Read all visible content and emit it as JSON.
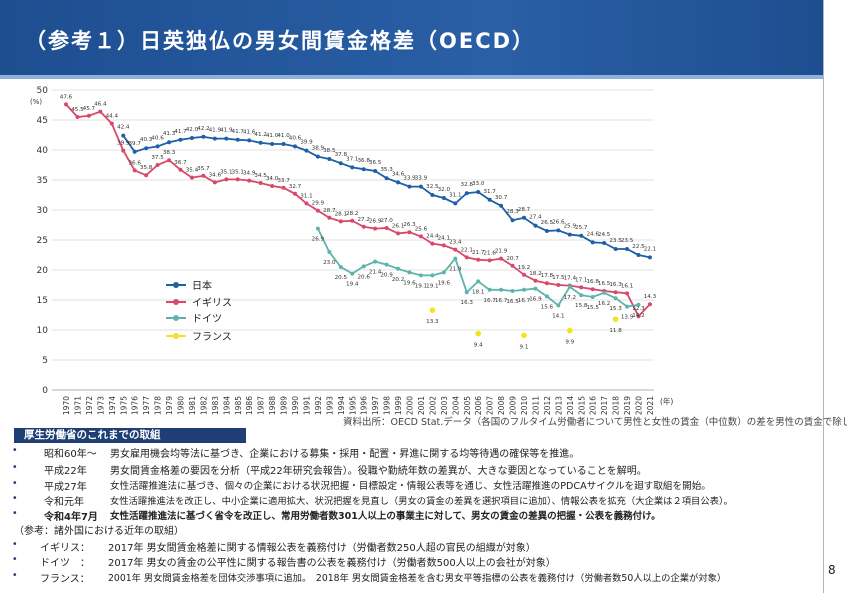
{
  "header": {
    "title": "（参考１）日英独仏の男女間賃金格差（OECD）"
  },
  "chart_data": {
    "type": "line",
    "ylabel": "(%)",
    "xunit": "(年)",
    "ylim": [
      0,
      50
    ],
    "yticks": [
      "0",
      "5",
      "10",
      "15",
      "20",
      "25",
      "30",
      "35",
      "40",
      "45",
      "50"
    ],
    "x": [
      "1970",
      "1971",
      "1972",
      "1973",
      "1974",
      "1975",
      "1976",
      "1977",
      "1978",
      "1979",
      "1980",
      "1981",
      "1982",
      "1983",
      "1984",
      "1985",
      "1986",
      "1987",
      "1988",
      "1989",
      "1990",
      "1991",
      "1992",
      "1993",
      "1994",
      "1995",
      "1996",
      "1997",
      "1998",
      "1999",
      "2000",
      "2001",
      "2002",
      "2003",
      "2004",
      "2005",
      "2006",
      "2007",
      "2008",
      "2009",
      "2010",
      "2011",
      "2012",
      "2013",
      "2014",
      "2015",
      "2016",
      "2017",
      "2018",
      "2019",
      "2020",
      "2021"
    ],
    "legend": [
      "日本",
      "イギリス",
      "ドイツ",
      "フランス"
    ],
    "series": [
      {
        "name": "日本",
        "color": "#1f5fa6",
        "values": [
          null,
          null,
          null,
          null,
          null,
          42.4,
          39.7,
          40.3,
          40.6,
          41.3,
          41.7,
          42.0,
          42.2,
          41.9,
          41.9,
          41.7,
          41.6,
          41.2,
          41.0,
          41.0,
          40.6,
          39.9,
          38.9,
          38.5,
          37.8,
          37.1,
          36.8,
          36.5,
          35.3,
          34.6,
          33.9,
          33.9,
          32.5,
          32.0,
          31.1,
          32.8,
          33.0,
          31.7,
          30.7,
          28.3,
          28.7,
          27.4,
          26.5,
          26.6,
          25.9,
          25.7,
          24.6,
          24.5,
          23.5,
          23.5,
          22.5,
          22.1
        ]
      },
      {
        "name": "イギリス",
        "color": "#d9486a",
        "values": [
          47.6,
          45.5,
          45.7,
          46.4,
          44.4,
          39.9,
          36.6,
          35.8,
          37.5,
          38.3,
          36.7,
          35.4,
          35.7,
          34.6,
          35.1,
          35.1,
          34.9,
          34.5,
          34.0,
          33.7,
          32.7,
          31.1,
          29.9,
          28.7,
          28.1,
          28.2,
          27.2,
          26.9,
          27.0,
          26.1,
          26.3,
          25.6,
          24.4,
          24.1,
          23.4,
          22.1,
          21.7,
          21.6,
          21.9,
          20.7,
          19.2,
          18.2,
          17.8,
          17.5,
          17.4,
          17.1,
          16.8,
          16.5,
          16.3,
          16.1,
          12.3,
          14.3
        ]
      },
      {
        "name": "ドイツ",
        "color": "#5fb3ad",
        "values": [
          null,
          null,
          null,
          null,
          null,
          null,
          null,
          null,
          null,
          null,
          null,
          null,
          null,
          null,
          null,
          null,
          null,
          null,
          null,
          null,
          null,
          null,
          26.9,
          23.0,
          20.5,
          19.4,
          20.6,
          21.4,
          20.9,
          20.2,
          19.6,
          19.1,
          19.1,
          19.6,
          21.9,
          16.3,
          18.1,
          16.7,
          16.7,
          16.5,
          16.7,
          16.9,
          15.6,
          14.1,
          17.2,
          15.8,
          15.5,
          16.2,
          15.3,
          13.9,
          14.2,
          null
        ]
      },
      {
        "name": "フランス",
        "color": "#f2e31a",
        "values": [
          null,
          null,
          null,
          null,
          null,
          null,
          null,
          null,
          null,
          null,
          null,
          null,
          null,
          null,
          null,
          null,
          null,
          null,
          null,
          null,
          null,
          null,
          null,
          null,
          null,
          null,
          null,
          null,
          null,
          null,
          null,
          null,
          13.3,
          null,
          null,
          null,
          9.4,
          null,
          null,
          null,
          9.1,
          null,
          null,
          null,
          9.9,
          null,
          null,
          null,
          11.8,
          null,
          null,
          null
        ]
      }
    ]
  },
  "source": "資料出所：OECD Stat.データ（各国のフルタイム労働者について男性と女性の賃金（中位数）の差を男性の賃金で除したもの）",
  "section": {
    "title": "厚生労働省のこれまでの取組",
    "rows": [
      {
        "label": "昭和60年～",
        "text": "男女雇用機会均等法に基づき、企業における募集・採用・配置・昇進に関する均等待遇の確保等を推進。"
      },
      {
        "label": "平成22年",
        "text": "男女間賃金格差の要因を分析（平成22年研究会報告）。役職や勤続年数の差異が、大きな要因となっていることを解明。"
      },
      {
        "label": "平成27年",
        "text": "女性活躍推進法に基づき、個々の企業における状況把握・目標設定・情報公表等を通じ、女性活躍推進のPDCAサイクルを廻す取組を開始。"
      },
      {
        "label": "令和元年",
        "text": "女性活躍推進法を改正し、中小企業に適用拡大、状況把握を見直し（男女の賃金の差異を選択項目に追加）、情報公表を拡充（大企業は２項目公表）。"
      },
      {
        "label": "令和4年7月",
        "text": "女性活躍推進法に基づく省令を改正し、常用労働者数301人以上の事業主に対して、男女の賃金の差異の把握・公表を義務付け。"
      }
    ]
  },
  "reference": {
    "heading": "（参考：諸外国における近年の取組）",
    "rows": [
      {
        "label": "イギリス：",
        "text": "2017年 男女間賃金格差に関する情報公表を義務付け（労働者数250人超の官民の組織が対象）"
      },
      {
        "label": "ドイツ　：",
        "text": "2017年 男女の賃金の公平性に関する報告書の公表を義務付け（労働者数500人以上の会社が対象）"
      },
      {
        "label": "フランス：",
        "text": "2001年 男女間賃金格差を団体交渉事項に追加。　2018年 男女間賃金格差を含む男女平等指標の公表を義務付け（労働者数50人以上の企業が対象）"
      }
    ]
  },
  "page_number": "8",
  "bullet_char": "•"
}
